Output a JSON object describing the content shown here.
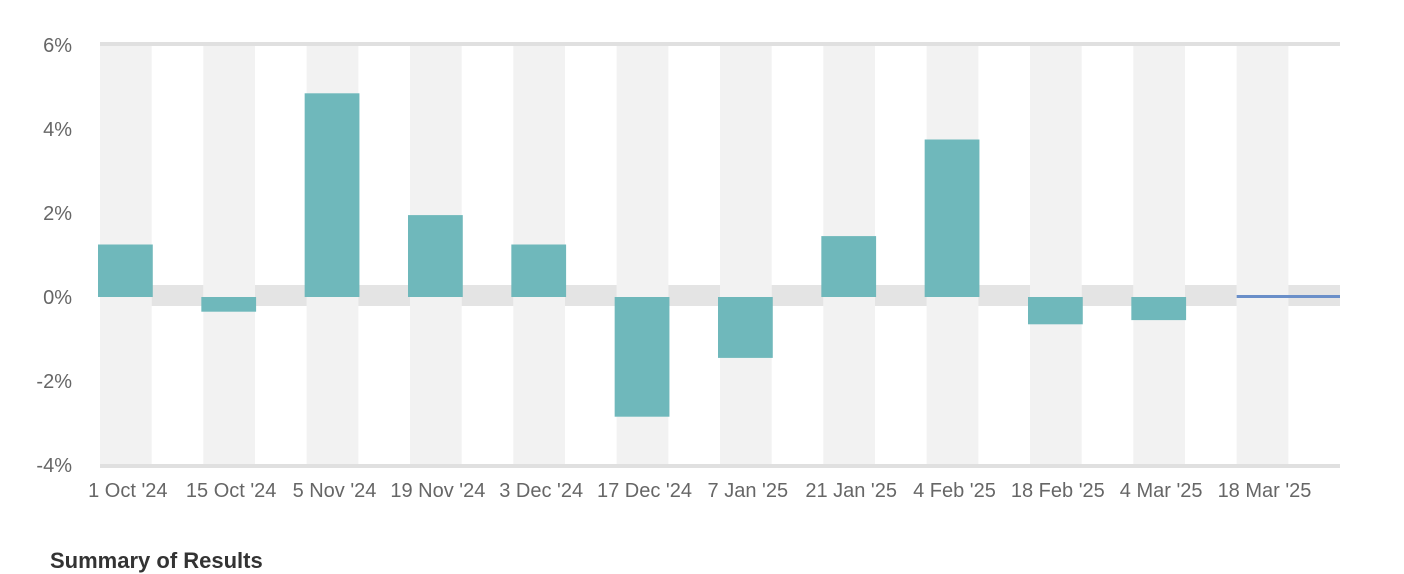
{
  "chart_data": {
    "type": "bar",
    "title": "",
    "xlabel": "",
    "ylabel": "",
    "categories": [
      "1 Oct '24",
      "15 Oct '24",
      "5 Nov '24",
      "19 Nov '24",
      "3 Dec '24",
      "17 Dec '24",
      "7 Jan '25",
      "21 Jan '25",
      "4 Feb '25",
      "18 Feb '25",
      "4 Mar '25",
      "18 Mar '25"
    ],
    "values": [
      1.25,
      -0.35,
      4.85,
      1.95,
      1.25,
      -2.85,
      -1.45,
      1.45,
      3.75,
      -0.65,
      -0.55,
      0.05
    ],
    "ylim": [
      -4,
      6
    ],
    "yticks": [
      -4,
      -2,
      0,
      2,
      4,
      6
    ],
    "ytick_labels": [
      "-4%",
      "-2%",
      "0%",
      "2%",
      "4%",
      "6%"
    ],
    "grid": false,
    "alternating_column_bands": true,
    "colors": {
      "bar": "#6fb8bb",
      "last_bar": "#6a8fc9",
      "band": "#f2f2f2",
      "zero_band": "#e4e4e4",
      "axis": "#e0e0e0",
      "text": "#666666"
    }
  },
  "below_chart": {
    "heading": "Summary of Results"
  }
}
